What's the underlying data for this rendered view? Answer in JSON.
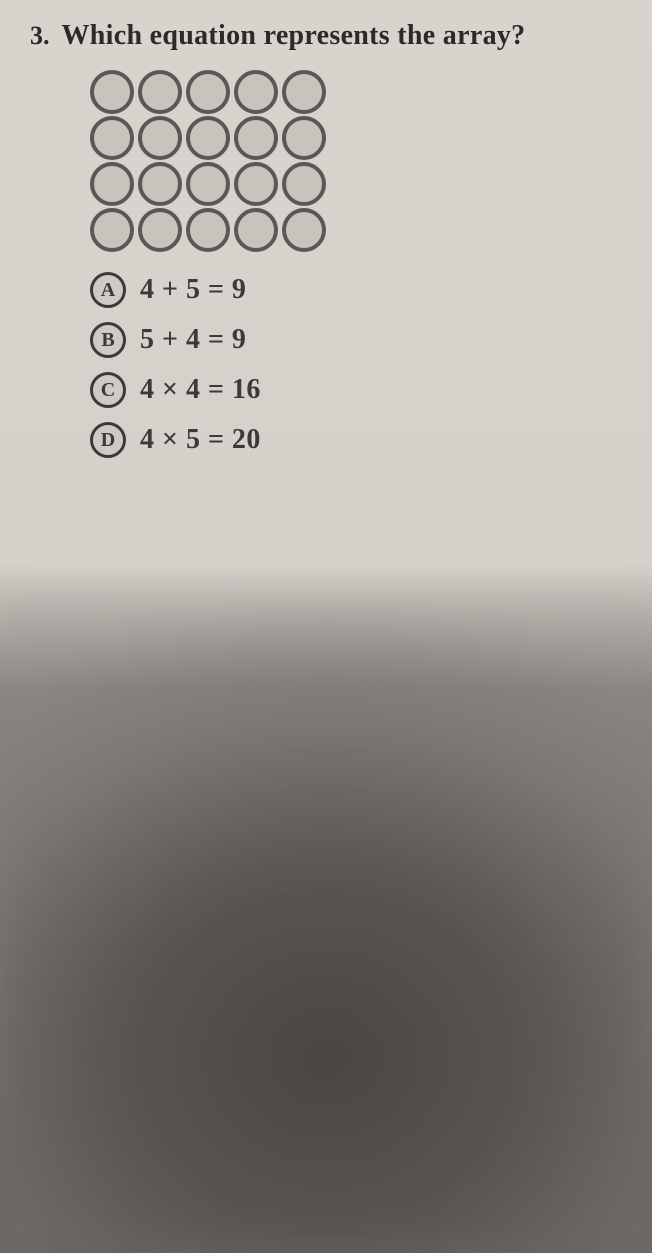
{
  "question": {
    "number": "3.",
    "text": "Which equation represents the array?"
  },
  "array": {
    "rows": 4,
    "cols": 5,
    "circle_border_color": "#5a5856",
    "circle_fill_color": "#c8c3bd",
    "circle_size": 44,
    "circle_border_width": 4
  },
  "answers": [
    {
      "marker": "A",
      "equation": "4 + 5 = 9"
    },
    {
      "marker": "B",
      "equation": "5 + 4 = 9"
    },
    {
      "marker": "C",
      "equation": "4 × 4 = 16"
    },
    {
      "marker": "D",
      "equation": "4 × 5 = 20"
    }
  ],
  "styling": {
    "background_top": "#d8d3cd",
    "background_bottom": "#6a6560",
    "text_color": "#3a3a3a",
    "font_family": "Georgia",
    "question_fontsize": 28,
    "answer_fontsize": 28,
    "marker_border_color": "#3a3a3a"
  }
}
